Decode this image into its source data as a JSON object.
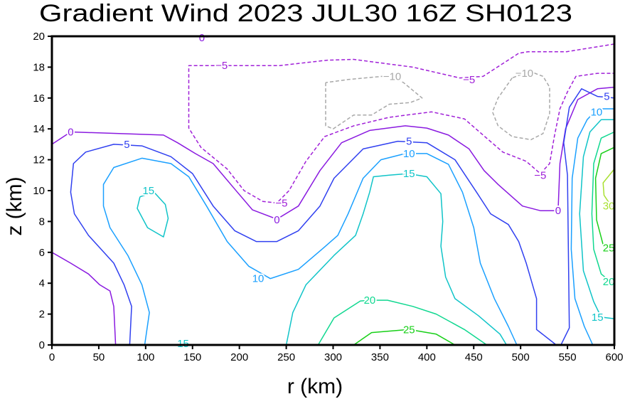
{
  "chart_data": {
    "type": "contour",
    "title": "Gradient Wind 2023 JUL30 16Z  SH0123",
    "xlabel": "r (km)",
    "ylabel": "z (km)",
    "xlim": [
      0,
      600
    ],
    "ylim": [
      0,
      20
    ],
    "xticks": [
      0,
      50,
      100,
      150,
      200,
      250,
      300,
      350,
      400,
      450,
      500,
      550,
      600
    ],
    "yticks": [
      0,
      2,
      4,
      6,
      8,
      10,
      12,
      14,
      16,
      18,
      20
    ],
    "grid": false,
    "level_colors": {
      "-10": "#a8a8a8",
      "-5": "#a020d8",
      "0": "#8a1ae0",
      "5": "#3040f0",
      "10": "#1aa0ff",
      "15": "#10c4c8",
      "20": "#10d890",
      "25": "#18d018",
      "30": "#a8e030"
    },
    "contours": [
      {
        "level": 0,
        "points": [
          [
            0,
            13
          ],
          [
            20,
            13.8
          ],
          [
            119,
            13.6
          ],
          [
            134,
            13.1
          ],
          [
            153,
            12.4
          ],
          [
            172,
            11.75
          ],
          [
            195,
            10.1
          ],
          [
            214,
            8.75
          ],
          [
            240,
            8.15
          ],
          [
            263,
            9
          ],
          [
            286,
            11.3
          ],
          [
            309,
            13.1
          ],
          [
            339,
            13.9
          ],
          [
            377,
            14.2
          ],
          [
            400,
            14.05
          ],
          [
            423,
            13.6
          ],
          [
            445,
            12.7
          ],
          [
            461,
            11.3
          ],
          [
            476,
            10.4
          ],
          [
            502,
            9
          ],
          [
            521,
            8.7
          ],
          [
            540,
            8.7
          ],
          [
            542,
            11.75
          ],
          [
            548,
            14
          ],
          [
            561,
            15.9
          ],
          [
            582,
            16.6
          ],
          [
            600,
            16.7
          ]
        ]
      },
      {
        "level": 0,
        "points": [
          [
            0,
            6
          ],
          [
            20,
            5.3
          ],
          [
            39,
            4.6
          ],
          [
            51,
            3.9
          ],
          [
            62,
            3.5
          ],
          [
            66,
            2.5
          ],
          [
            68,
            0
          ]
        ]
      },
      {
        "level": 0,
        "points": [
          [
            146,
            20
          ],
          [
            161,
            19.95
          ],
          [
            184,
            20
          ]
        ]
      },
      {
        "level": 5,
        "points": [
          [
            83,
            0
          ],
          [
            85,
            2.5
          ],
          [
            77,
            3.9
          ],
          [
            66,
            5.3
          ],
          [
            39,
            7.1
          ],
          [
            24,
            8.5
          ],
          [
            20,
            9.9
          ],
          [
            23,
            11.75
          ],
          [
            36,
            12.5
          ],
          [
            66,
            13
          ],
          [
            96,
            12.9
          ],
          [
            127,
            12.2
          ],
          [
            150,
            11.1
          ],
          [
            172,
            9
          ],
          [
            195,
            7.4
          ],
          [
            218,
            6.7
          ],
          [
            240,
            6.7
          ],
          [
            263,
            7.4
          ],
          [
            286,
            9
          ],
          [
            301,
            10.8
          ],
          [
            332,
            12.7
          ],
          [
            369,
            13.2
          ],
          [
            400,
            13.1
          ],
          [
            430,
            12
          ],
          [
            453,
            9.9
          ],
          [
            468,
            8.5
          ],
          [
            487,
            7.8
          ],
          [
            498,
            6.7
          ],
          [
            506,
            5.3
          ],
          [
            517,
            3
          ],
          [
            517,
            1.0
          ],
          [
            538,
            0
          ],
          [
            543,
            0
          ],
          [
            552,
            1.1
          ],
          [
            551,
            6
          ],
          [
            550,
            11
          ],
          [
            546,
            13.1
          ],
          [
            552,
            15.4
          ],
          [
            565,
            16.6
          ],
          [
            582,
            16.1
          ],
          [
            600,
            16
          ]
        ]
      },
      {
        "level": 10,
        "points": [
          [
            99,
            0
          ],
          [
            104,
            2.1
          ],
          [
            96,
            3.9
          ],
          [
            81,
            5.8
          ],
          [
            62,
            7.6
          ],
          [
            55,
            9
          ],
          [
            55,
            10.4
          ],
          [
            66,
            11.5
          ],
          [
            96,
            12.1
          ],
          [
            127,
            11.75
          ],
          [
            146,
            10.9
          ],
          [
            165,
            9
          ],
          [
            187,
            6.7
          ],
          [
            210,
            5.1
          ],
          [
            233,
            4.3
          ],
          [
            263,
            4.9
          ],
          [
            290,
            6.3
          ],
          [
            305,
            7.1
          ],
          [
            316,
            8.5
          ],
          [
            332,
            10.8
          ],
          [
            351,
            12
          ],
          [
            377,
            12.4
          ],
          [
            400,
            12.4
          ],
          [
            423,
            11.7
          ],
          [
            438,
            9.9
          ],
          [
            450,
            7.6
          ],
          [
            457,
            5.3
          ],
          [
            472,
            3
          ],
          [
            487,
            1.2
          ],
          [
            496,
            0
          ]
        ]
      },
      {
        "level": 10,
        "points": [
          [
            577,
            0
          ],
          [
            568,
            1.2
          ],
          [
            558,
            3
          ],
          [
            554,
            6.2
          ],
          [
            555,
            10.8
          ],
          [
            561,
            13.4
          ],
          [
            571,
            14.6
          ],
          [
            582,
            15.3
          ],
          [
            600,
            15.3
          ]
        ]
      },
      {
        "level": 15,
        "points": [
          [
            94,
            9.6
          ],
          [
            91,
            8.85
          ],
          [
            102,
            7.6
          ],
          [
            119,
            7
          ],
          [
            124,
            8.2
          ],
          [
            121,
            9.1
          ],
          [
            109,
            9.9
          ],
          [
            94,
            9.6
          ]
        ]
      },
      {
        "level": 15,
        "points": [
          [
            140,
            0.05
          ],
          [
            160,
            0
          ]
        ]
      },
      {
        "level": 15,
        "points": [
          [
            250,
            0
          ],
          [
            257,
            2.1
          ],
          [
            271,
            3.9
          ],
          [
            301,
            5.8
          ],
          [
            324,
            7.1
          ],
          [
            332,
            8.5
          ],
          [
            339,
            9.9
          ],
          [
            343,
            10.9
          ],
          [
            360,
            11
          ],
          [
            380,
            11.1
          ],
          [
            400,
            10.9
          ],
          [
            415,
            9.8
          ],
          [
            417,
            8
          ],
          [
            415,
            6.4
          ],
          [
            420,
            4.4
          ],
          [
            430,
            3
          ],
          [
            455,
            1.9
          ],
          [
            478,
            0.7
          ],
          [
            485,
            0
          ]
        ]
      },
      {
        "level": 15,
        "points": [
          [
            600,
            1.7
          ],
          [
            586,
            1.8
          ],
          [
            578,
            2.8
          ],
          [
            567,
            4.8
          ],
          [
            563,
            8.5
          ],
          [
            567,
            12.2
          ],
          [
            574,
            13.8
          ],
          [
            586,
            14.6
          ],
          [
            600,
            14.6
          ]
        ]
      },
      {
        "level": 20,
        "points": [
          [
            284,
            0
          ],
          [
            301,
            1.75
          ],
          [
            329,
            2.85
          ],
          [
            339,
            2.9
          ],
          [
            358,
            2.9
          ],
          [
            385,
            2.5
          ],
          [
            410,
            2
          ],
          [
            440,
            1
          ],
          [
            464,
            0
          ]
        ]
      },
      {
        "level": 20,
        "points": [
          [
            600,
            3.9
          ],
          [
            586,
            4.6
          ],
          [
            578,
            6.2
          ],
          [
            576,
            8.5
          ],
          [
            578,
            11.75
          ],
          [
            586,
            13.4
          ],
          [
            600,
            13.8
          ]
        ]
      },
      {
        "level": 25,
        "points": [
          [
            322,
            0
          ],
          [
            341,
            0.8
          ],
          [
            381,
            1
          ],
          [
            410,
            0.7
          ],
          [
            430,
            0
          ]
        ]
      },
      {
        "level": 25,
        "points": [
          [
            600,
            6.1
          ],
          [
            588,
            6.5
          ],
          [
            581,
            8.1
          ],
          [
            580,
            10.8
          ],
          [
            586,
            12.4
          ],
          [
            600,
            12.8
          ]
        ]
      },
      {
        "level": 30,
        "points": [
          [
            600,
            8.7
          ],
          [
            589,
            9.7
          ],
          [
            588,
            10.5
          ],
          [
            600,
            11.4
          ]
        ]
      },
      {
        "level": -5,
        "points": [
          [
            600,
            19.5
          ],
          [
            549,
            19
          ],
          [
            508,
            19
          ],
          [
            498,
            18.9
          ],
          [
            460,
            17.4
          ],
          [
            435,
            17.3
          ],
          [
            385,
            18
          ],
          [
            322,
            18.5
          ],
          [
            294,
            18.45
          ],
          [
            243,
            18.1
          ],
          [
            172,
            18.1
          ],
          [
            146,
            18.1
          ],
          [
            146,
            14.05
          ],
          [
            159,
            12.8
          ],
          [
            187,
            11.4
          ],
          [
            205,
            10
          ],
          [
            225,
            9.3
          ],
          [
            240,
            9.2
          ],
          [
            253,
            10
          ],
          [
            271,
            11.9
          ],
          [
            291,
            13.5
          ],
          [
            322,
            14.2
          ],
          [
            360,
            14.75
          ],
          [
            405,
            15.1
          ],
          [
            440,
            14.65
          ],
          [
            460,
            13.6
          ],
          [
            481,
            12.5
          ],
          [
            506,
            11.9
          ],
          [
            521,
            11.1
          ],
          [
            531,
            11.75
          ],
          [
            536,
            13.5
          ],
          [
            542,
            15.3
          ],
          [
            550,
            16.4
          ],
          [
            559,
            17.4
          ],
          [
            582,
            17.6
          ],
          [
            600,
            17.6
          ]
        ]
      },
      {
        "level": -10,
        "points": [
          [
            292,
            17
          ],
          [
            292,
            14.2
          ],
          [
            300,
            14
          ],
          [
            322,
            14.9
          ],
          [
            341,
            14.9
          ],
          [
            360,
            15.6
          ],
          [
            382,
            15.7
          ],
          [
            395,
            16
          ],
          [
            375,
            17
          ],
          [
            363,
            17.4
          ],
          [
            352,
            17.4
          ],
          [
            316,
            17.2
          ],
          [
            292,
            17
          ]
        ]
      },
      {
        "level": -10,
        "points": [
          [
            491,
            17.3
          ],
          [
            476,
            16
          ],
          [
            470,
            15.1
          ],
          [
            476,
            14.2
          ],
          [
            491,
            13.5
          ],
          [
            511,
            13.3
          ],
          [
            524,
            13.7
          ],
          [
            531,
            15
          ],
          [
            531,
            16.7
          ],
          [
            524,
            17.4
          ],
          [
            511,
            17.7
          ],
          [
            504,
            17.6
          ],
          [
            491,
            17.3
          ]
        ]
      }
    ],
    "labels": [
      {
        "text": "0",
        "level": 0,
        "r": 160,
        "z": 19.9
      },
      {
        "text": "-5",
        "level": -5,
        "r": 181,
        "z": 18.1
      },
      {
        "text": "-10",
        "level": -10,
        "r": 363,
        "z": 17.4
      },
      {
        "text": "-10",
        "level": -10,
        "r": 504,
        "z": 17.6
      },
      {
        "text": "-5",
        "level": -5,
        "r": 445,
        "z": 17.2
      },
      {
        "text": "0",
        "level": 0,
        "r": 20,
        "z": 13.8
      },
      {
        "text": "5",
        "level": 5,
        "r": 80,
        "z": 13
      },
      {
        "text": "15",
        "level": 15,
        "r": 103,
        "z": 10
      },
      {
        "text": "-5",
        "level": -5,
        "r": 245,
        "z": 9.2
      },
      {
        "text": "0",
        "level": 0,
        "r": 240,
        "z": 8.1
      },
      {
        "text": "10",
        "level": 10,
        "r": 220,
        "z": 4.3
      },
      {
        "text": "5",
        "level": 5,
        "r": 381,
        "z": 13.2
      },
      {
        "text": "10",
        "level": 10,
        "r": 381,
        "z": 12.4
      },
      {
        "text": "15",
        "level": 15,
        "r": 381,
        "z": 11.1
      },
      {
        "text": "20",
        "level": 20,
        "r": 339,
        "z": 2.9
      },
      {
        "text": "25",
        "level": 25,
        "r": 381,
        "z": 1
      },
      {
        "text": "15",
        "level": 15,
        "r": 140,
        "z": 0.1
      },
      {
        "text": "-5",
        "level": -5,
        "r": 521,
        "z": 11
      },
      {
        "text": "0",
        "level": 0,
        "r": 540,
        "z": 8.7
      },
      {
        "text": "5",
        "level": 5,
        "r": 592,
        "z": 16.1
      },
      {
        "text": "10",
        "level": 10,
        "r": 581,
        "z": 15.1
      },
      {
        "text": "30",
        "level": 30,
        "r": 594,
        "z": 9.0
      },
      {
        "text": "25",
        "level": 25,
        "r": 594,
        "z": 6.3
      },
      {
        "text": "20",
        "level": 20,
        "r": 594,
        "z": 4.1
      },
      {
        "text": "15",
        "level": 15,
        "r": 582,
        "z": 1.8
      }
    ]
  }
}
